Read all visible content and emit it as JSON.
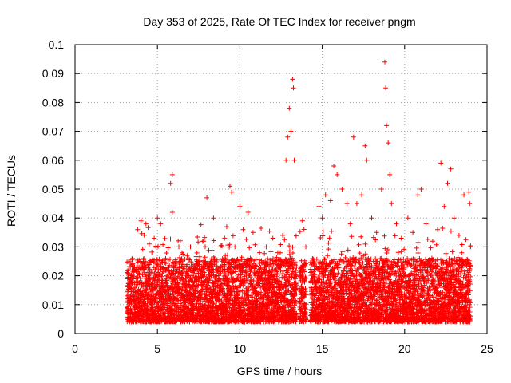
{
  "chart_data": {
    "type": "scatter",
    "title": "Day 353 of 2025, Rate Of TEC Index for receiver pngm",
    "xlabel": "GPS time / hours",
    "ylabel": "ROTI / TECUs",
    "xlim": [
      0,
      25
    ],
    "ylim": [
      0,
      0.1
    ],
    "xticks": [
      0,
      5,
      10,
      15,
      20,
      25
    ],
    "xtick_labels": [
      "0",
      "5",
      "10",
      "15",
      "20",
      "25"
    ],
    "yticks": [
      0,
      0.01,
      0.02,
      0.03,
      0.04,
      0.05,
      0.06,
      0.07,
      0.08,
      0.09,
      0.1
    ],
    "ytick_labels": [
      "0",
      "0.01",
      "0.02",
      "0.03",
      "0.04",
      "0.05",
      "0.06",
      "0.07",
      "0.08",
      "0.09",
      "0.1"
    ],
    "grid": true,
    "marker": "+",
    "color": "#ff0000",
    "series": [
      {
        "name": "ROTI",
        "points": [
          [
            3.2,
            0.012
          ],
          [
            3.4,
            0.018
          ],
          [
            3.6,
            0.022
          ],
          [
            3.8,
            0.036
          ],
          [
            4.0,
            0.039
          ],
          [
            4.2,
            0.034
          ],
          [
            4.3,
            0.038
          ],
          [
            4.5,
            0.031
          ],
          [
            4.8,
            0.033
          ],
          [
            5.0,
            0.04
          ],
          [
            5.2,
            0.038
          ],
          [
            5.5,
            0.026
          ],
          [
            5.8,
            0.052
          ],
          [
            5.9,
            0.055
          ],
          [
            5.9,
            0.042
          ],
          [
            6.3,
            0.03
          ],
          [
            6.5,
            0.024
          ],
          [
            6.8,
            0.027
          ],
          [
            7.0,
            0.03
          ],
          [
            7.4,
            0.025
          ],
          [
            7.8,
            0.032
          ],
          [
            8.0,
            0.047
          ],
          [
            8.4,
            0.04
          ],
          [
            8.8,
            0.03
          ],
          [
            9.2,
            0.037
          ],
          [
            9.4,
            0.051
          ],
          [
            9.5,
            0.049
          ],
          [
            9.7,
            0.03
          ],
          [
            10.0,
            0.044
          ],
          [
            10.2,
            0.036
          ],
          [
            10.5,
            0.042
          ],
          [
            10.8,
            0.035
          ],
          [
            11.2,
            0.028
          ],
          [
            11.6,
            0.03
          ],
          [
            12.0,
            0.033
          ],
          [
            12.3,
            0.028
          ],
          [
            12.6,
            0.034
          ],
          [
            12.8,
            0.06
          ],
          [
            12.9,
            0.068
          ],
          [
            13.0,
            0.078
          ],
          [
            13.1,
            0.07
          ],
          [
            13.2,
            0.088
          ],
          [
            13.25,
            0.085
          ],
          [
            13.3,
            0.06
          ],
          [
            13.6,
            0.015
          ],
          [
            13.8,
            0.039
          ],
          [
            14.0,
            0.03
          ],
          [
            14.3,
            0.018
          ],
          [
            14.8,
            0.044
          ],
          [
            15.0,
            0.04
          ],
          [
            15.2,
            0.048
          ],
          [
            15.5,
            0.046
          ],
          [
            15.7,
            0.058
          ],
          [
            15.9,
            0.055
          ],
          [
            16.2,
            0.05
          ],
          [
            16.5,
            0.045
          ],
          [
            16.7,
            0.038
          ],
          [
            16.9,
            0.068
          ],
          [
            17.1,
            0.045
          ],
          [
            17.4,
            0.048
          ],
          [
            17.6,
            0.065
          ],
          [
            17.7,
            0.06
          ],
          [
            18.0,
            0.04
          ],
          [
            18.3,
            0.035
          ],
          [
            18.6,
            0.05
          ],
          [
            18.8,
            0.094
          ],
          [
            18.85,
            0.085
          ],
          [
            18.9,
            0.072
          ],
          [
            19.0,
            0.066
          ],
          [
            19.1,
            0.055
          ],
          [
            19.2,
            0.045
          ],
          [
            19.5,
            0.038
          ],
          [
            19.8,
            0.033
          ],
          [
            20.2,
            0.04
          ],
          [
            20.5,
            0.035
          ],
          [
            20.8,
            0.048
          ],
          [
            21.0,
            0.05
          ],
          [
            21.3,
            0.038
          ],
          [
            21.7,
            0.032
          ],
          [
            22.0,
            0.036
          ],
          [
            22.2,
            0.059
          ],
          [
            22.4,
            0.044
          ],
          [
            22.6,
            0.052
          ],
          [
            22.8,
            0.057
          ],
          [
            23.0,
            0.04
          ],
          [
            23.3,
            0.034
          ],
          [
            23.6,
            0.048
          ],
          [
            23.9,
            0.049
          ],
          [
            23.95,
            0.045
          ],
          [
            24.0,
            0.03
          ]
        ]
      }
    ]
  }
}
